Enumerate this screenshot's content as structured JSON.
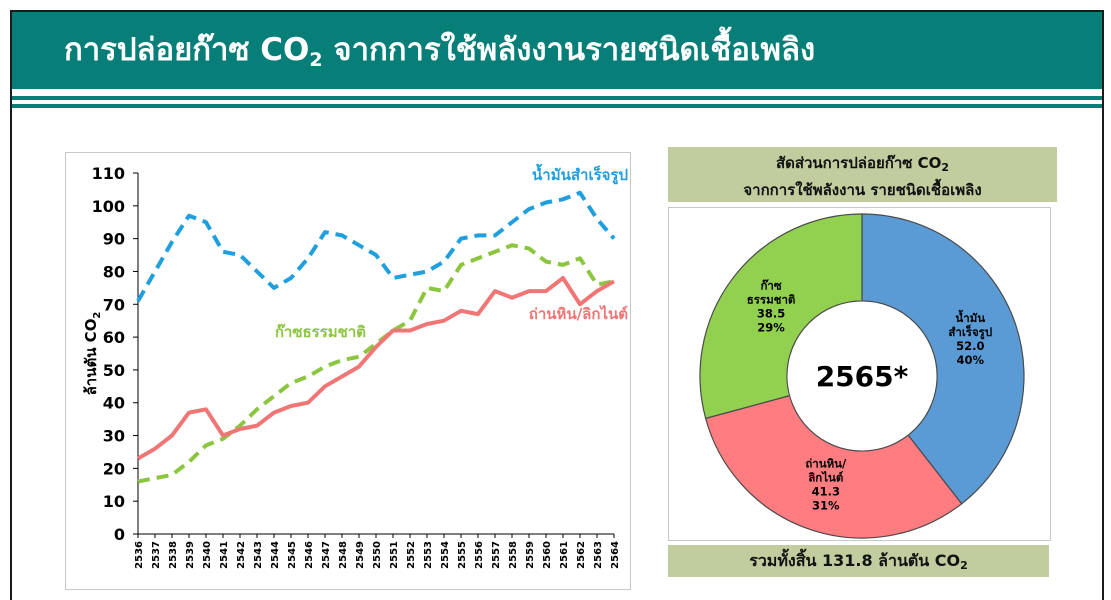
{
  "header": {
    "title_prefix": "การปล่อยก๊าซ CO",
    "title_sub": "2",
    "title_suffix": " จากการใช้พลังงานรายชนิดเชื้อเพลิง"
  },
  "line_chart": {
    "ylabel_main": "ล้านตัน CO",
    "ylabel_sub": "2"
  },
  "donut": {
    "title_line1_prefix": "สัดส่วนการปล่อยก๊าซ CO",
    "title_line1_sub": "2",
    "title_line2": "จากการใช้พลังงาน รายชนิดเชื้อเพลิง",
    "center_label": "2565*",
    "total_prefix": "รวมทั้งสิ้น 131.8 ล้านตัน CO",
    "total_sub": "2"
  },
  "chart_data": [
    {
      "type": "line",
      "title": "",
      "xlabel": "",
      "ylabel": "ล้านตัน CO2",
      "ylim": [
        0,
        110
      ],
      "yticks": [
        0,
        10,
        20,
        30,
        40,
        50,
        60,
        70,
        80,
        90,
        100,
        110
      ],
      "grid": false,
      "categories": [
        "2536",
        "2537",
        "2538",
        "2539",
        "2540",
        "2541",
        "2542",
        "2543",
        "2544",
        "2545",
        "2546",
        "2547",
        "2548",
        "2549",
        "2550",
        "2551",
        "2552",
        "2553",
        "2554",
        "2555",
        "2556",
        "2557",
        "2558",
        "2559",
        "2560",
        "2561",
        "2562",
        "2563",
        "2564"
      ],
      "series": [
        {
          "name": "น้ำมันสำเร็จรูป",
          "color": "#1f9ee0",
          "style": "dashed",
          "values": [
            71,
            80,
            89,
            97,
            95,
            86,
            85,
            80,
            75,
            78,
            84,
            92,
            91,
            88,
            85,
            78,
            79,
            80,
            83,
            90,
            91,
            91,
            95,
            99,
            101,
            102,
            104,
            96,
            90
          ]
        },
        {
          "name": "ก๊าซธรรมชาติ",
          "color": "#8cc63f",
          "style": "dashed",
          "values": [
            16,
            17,
            18,
            22,
            27,
            29,
            33,
            38,
            42,
            46,
            48,
            51,
            53,
            54,
            58,
            62,
            65,
            75,
            74,
            82,
            84,
            86,
            88,
            87,
            83,
            82,
            84,
            76,
            77
          ]
        },
        {
          "name": "ถ่านหิน/ลิกไนต์",
          "color": "#f07676",
          "style": "solid",
          "values": [
            23,
            26,
            30,
            37,
            38,
            30,
            32,
            33,
            37,
            39,
            40,
            45,
            48,
            51,
            57,
            62,
            62,
            64,
            65,
            68,
            67,
            74,
            72,
            74,
            74,
            78,
            70,
            74,
            77
          ]
        }
      ]
    },
    {
      "type": "pie",
      "title": "สัดส่วนการปล่อยก๊าซ CO2 จากการใช้พลังงาน รายชนิดเชื้อเพลิง",
      "center_label": "2565*",
      "slices": [
        {
          "label": "น้ำมันสำเร็จรูป",
          "label_lines": [
            "น้ำมัน",
            "สำเร็จรูป"
          ],
          "value": 52.0,
          "value_text": "52.0",
          "percent": 40,
          "percent_text": "40%",
          "color": "#5b9bd5"
        },
        {
          "label": "ถ่านหิน/ลิกไนต์",
          "label_lines": [
            "ถ่านหิน/",
            "ลิกไนต์"
          ],
          "value": 41.3,
          "value_text": "41.3",
          "percent": 31,
          "percent_text": "31%",
          "color": "#ff7c80"
        },
        {
          "label": "ก๊าซธรรมชาติ",
          "label_lines": [
            "ก๊าซ",
            "ธรรมชาติ"
          ],
          "value": 38.5,
          "value_text": "38.5",
          "percent": 29,
          "percent_text": "29%",
          "color": "#92d050"
        }
      ],
      "total_text": "รวมทั้งสิ้น 131.8 ล้านตัน CO2"
    }
  ]
}
